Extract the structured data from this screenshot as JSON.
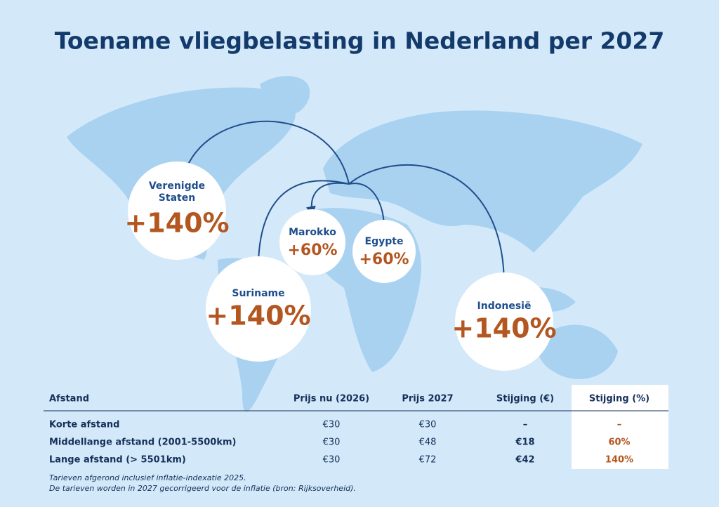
{
  "title": "Toename vliegbelasting in Nederland per 2027",
  "destinations": [
    {
      "label": "Verenigde Staten",
      "value": "+140%"
    },
    {
      "label": "Marokko",
      "value": "+60%"
    },
    {
      "label": "Egypte",
      "value": "+60%"
    },
    {
      "label": "Suriname",
      "value": "+140%"
    },
    {
      "label": "Indonesië",
      "value": "+140%"
    }
  ],
  "table": {
    "header": [
      "Afstand",
      "Prijs nu (2026)",
      "Prijs 2027",
      "Stijging (€)",
      "Stijging (%)"
    ],
    "rows": [
      [
        "Korte afstand",
        "€30",
        "€30",
        "–",
        "–"
      ],
      [
        "Middellange afstand (2001-5500km)",
        "€30",
        "€48",
        "€18",
        "60%"
      ],
      [
        "Lange afstand (> 5501km)",
        "€30",
        "€72",
        "€42",
        "140%"
      ]
    ]
  },
  "footnotes": [
    "Tarieven afgerond inclusief inflatie-indexatie 2025.",
    "De tarieven worden in 2027 gecorrigeerd voor de inflatie (bron: Rijksoverheid)."
  ]
}
